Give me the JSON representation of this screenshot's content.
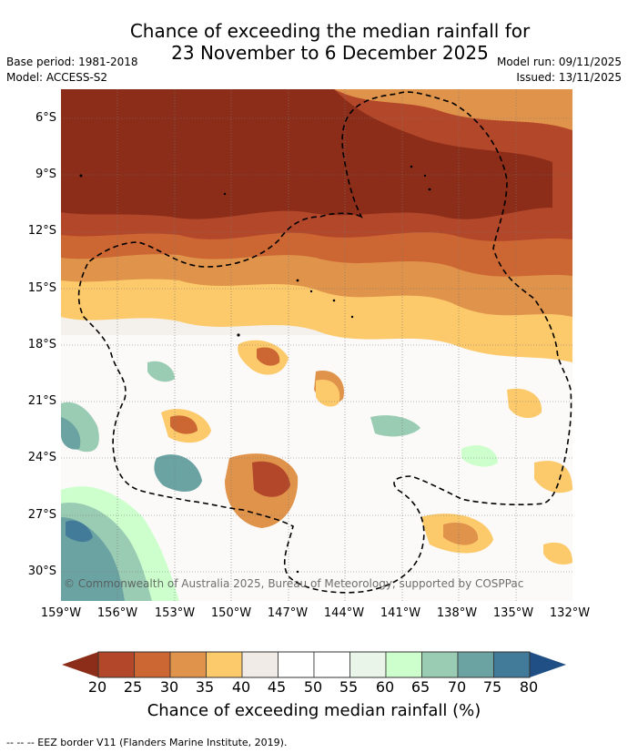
{
  "title_line1": "Chance of exceeding the median rainfall for",
  "title_line2": "23 November to 6 December 2025",
  "base_period": "Base period: 1981-2018",
  "model": "Model: ACCESS-S2",
  "model_run": "Model run: 09/11/2025",
  "issued": "Issued: 13/11/2025",
  "lat_labels": [
    "6°S",
    "9°S",
    "12°S",
    "15°S",
    "18°S",
    "21°S",
    "24°S",
    "27°S",
    "30°S"
  ],
  "lon_labels": [
    "159°W",
    "156°W",
    "153°W",
    "150°W",
    "147°W",
    "144°W",
    "141°W",
    "138°W",
    "135°W",
    "132°W"
  ],
  "copyright": "© Commonwealth of Australia 2025, Bureau of Meteorology, supported by COSPPac",
  "colorbar": {
    "ticks": [
      "20",
      "25",
      "30",
      "35",
      "40",
      "45",
      "50",
      "55",
      "60",
      "65",
      "70",
      "75",
      "80"
    ],
    "colors": [
      "#8c2d1a",
      "#b3472a",
      "#cc6633",
      "#e0934a",
      "#fcc96b",
      "#f0ebe6",
      "#ffffff",
      "#ffffff",
      "#e8f5e8",
      "#ccffcc",
      "#99ccb3",
      "#6ba3a3",
      "#427a99",
      "#1f4f85"
    ],
    "title": "Chance of exceeding median rainfall (%)"
  },
  "eez_note": "-- -- -- EEZ border V11 (Flanders Marine Institute, 2019)."
}
